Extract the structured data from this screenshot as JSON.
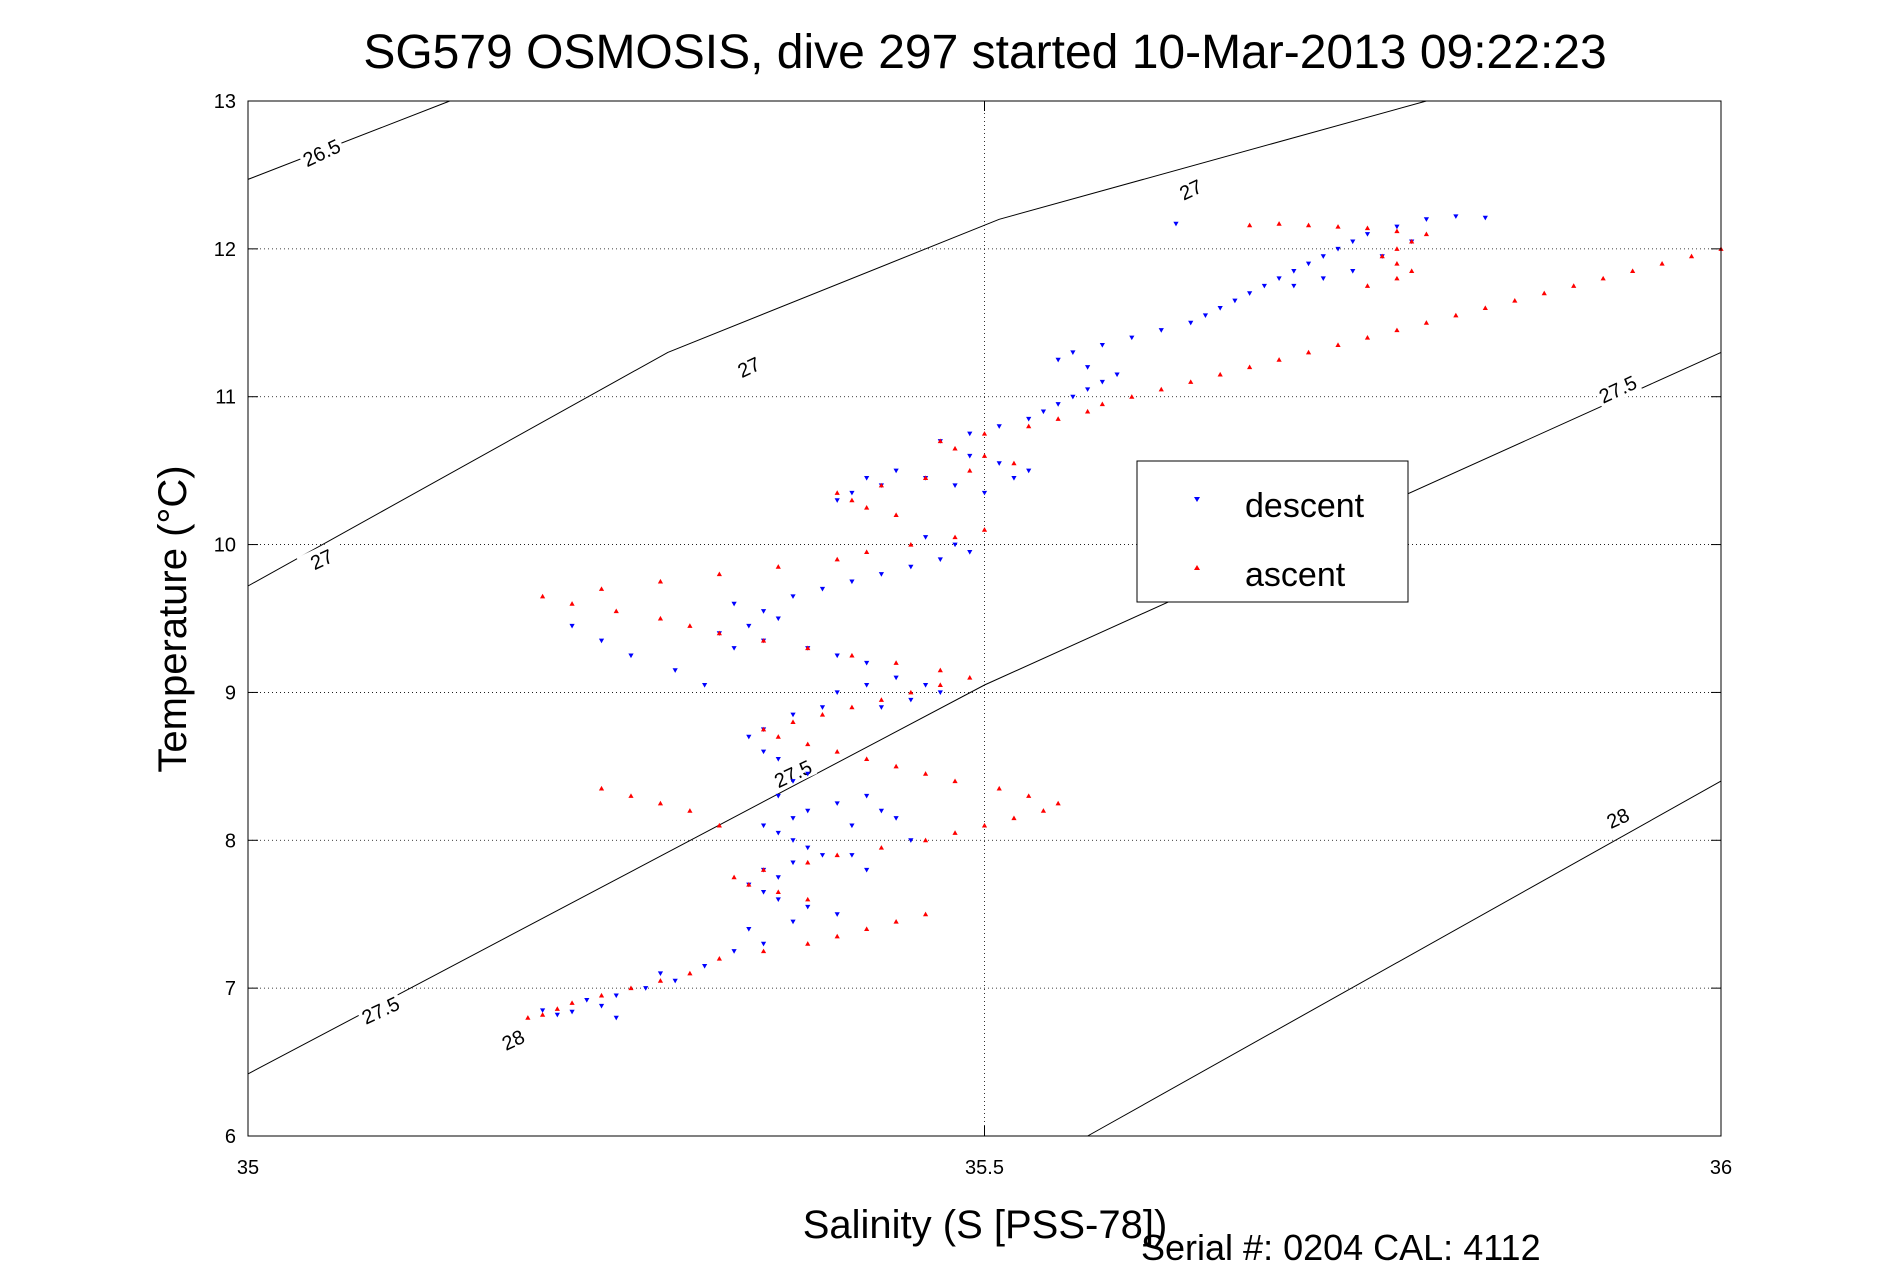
{
  "chart_data": {
    "type": "scatter",
    "title": "SG579 OSMOSIS, dive 297 started 10-Mar-2013 09:22:23",
    "xlabel": "Salinity (S [PSS-78])",
    "ylabel": "Temperature (°C)",
    "xlim": [
      35,
      36
    ],
    "ylim": [
      6,
      13
    ],
    "xticks": [
      35,
      35.5,
      36
    ],
    "yticks": [
      6,
      7,
      8,
      9,
      10,
      11,
      12,
      13
    ],
    "grid": true,
    "legend_placement": "right",
    "footer": "Serial #: 0204  CAL: 4112",
    "density_contours": [
      {
        "label": "26.5",
        "points": [
          [
            35,
            12.47
          ],
          [
            35.137,
            13
          ]
        ],
        "label_positions": [
          [
            35.05,
            12.65
          ]
        ]
      },
      {
        "label": "27",
        "points": [
          [
            35,
            9.72
          ],
          [
            35.285,
            11.3
          ],
          [
            35.51,
            12.2
          ],
          [
            35.8,
            13
          ]
        ],
        "label_positions": [
          [
            35.05,
            9.9
          ],
          [
            35.34,
            11.2
          ],
          [
            35.64,
            12.4
          ]
        ]
      },
      {
        "label": "27.5",
        "points": [
          [
            35,
            6.42
          ],
          [
            35.5,
            9.05
          ],
          [
            36,
            11.3
          ]
        ],
        "label_positions": [
          [
            35.09,
            6.85
          ],
          [
            35.37,
            8.45
          ],
          [
            35.93,
            11.05
          ]
        ]
      },
      {
        "label": "28",
        "points": [
          [
            35.57,
            6
          ],
          [
            36,
            8.4
          ]
        ],
        "label_positions": [
          [
            35.18,
            6.65
          ],
          [
            35.93,
            8.15
          ]
        ]
      }
    ],
    "series": [
      {
        "name": "descent",
        "color": "#0000ff",
        "marker": "triangle-down",
        "points": [
          [
            35.21,
            6.82
          ],
          [
            35.2,
            6.85
          ],
          [
            35.22,
            6.84
          ],
          [
            35.25,
            6.8
          ],
          [
            35.24,
            6.88
          ],
          [
            35.23,
            6.92
          ],
          [
            35.25,
            6.95
          ],
          [
            35.27,
            7.0
          ],
          [
            35.29,
            7.05
          ],
          [
            35.28,
            7.1
          ],
          [
            35.31,
            7.15
          ],
          [
            35.33,
            7.25
          ],
          [
            35.35,
            7.3
          ],
          [
            35.34,
            7.4
          ],
          [
            35.37,
            7.45
          ],
          [
            35.4,
            7.5
          ],
          [
            35.38,
            7.55
          ],
          [
            35.36,
            7.6
          ],
          [
            35.35,
            7.65
          ],
          [
            35.34,
            7.7
          ],
          [
            35.36,
            7.75
          ],
          [
            35.35,
            7.8
          ],
          [
            35.37,
            7.85
          ],
          [
            35.39,
            7.9
          ],
          [
            35.38,
            7.95
          ],
          [
            35.37,
            8.0
          ],
          [
            35.36,
            8.05
          ],
          [
            35.35,
            8.1
          ],
          [
            35.37,
            8.15
          ],
          [
            35.38,
            8.2
          ],
          [
            35.4,
            8.25
          ],
          [
            35.42,
            8.3
          ],
          [
            35.43,
            8.2
          ],
          [
            35.44,
            8.15
          ],
          [
            35.41,
            8.1
          ],
          [
            35.45,
            8.0
          ],
          [
            35.42,
            7.8
          ],
          [
            35.41,
            7.9
          ],
          [
            35.36,
            8.3
          ],
          [
            35.37,
            8.4
          ],
          [
            35.38,
            8.45
          ],
          [
            35.36,
            8.55
          ],
          [
            35.35,
            8.6
          ],
          [
            35.34,
            8.7
          ],
          [
            35.35,
            8.75
          ],
          [
            35.37,
            8.85
          ],
          [
            35.39,
            8.9
          ],
          [
            35.4,
            9.0
          ],
          [
            35.42,
            9.05
          ],
          [
            35.44,
            9.1
          ],
          [
            35.46,
            9.05
          ],
          [
            35.47,
            9.0
          ],
          [
            35.45,
            8.95
          ],
          [
            35.43,
            8.9
          ],
          [
            35.42,
            9.2
          ],
          [
            35.4,
            9.25
          ],
          [
            35.38,
            9.3
          ],
          [
            35.35,
            9.35
          ],
          [
            35.33,
            9.3
          ],
          [
            35.32,
            9.4
          ],
          [
            35.34,
            9.45
          ],
          [
            35.36,
            9.5
          ],
          [
            35.35,
            9.55
          ],
          [
            35.33,
            9.6
          ],
          [
            35.37,
            9.65
          ],
          [
            35.39,
            9.7
          ],
          [
            35.41,
            9.75
          ],
          [
            35.43,
            9.8
          ],
          [
            35.45,
            9.85
          ],
          [
            35.47,
            9.9
          ],
          [
            35.49,
            9.95
          ],
          [
            35.48,
            10.0
          ],
          [
            35.46,
            10.05
          ],
          [
            35.4,
            10.3
          ],
          [
            35.41,
            10.35
          ],
          [
            35.43,
            10.4
          ],
          [
            35.42,
            10.45
          ],
          [
            35.44,
            10.5
          ],
          [
            35.46,
            10.45
          ],
          [
            35.48,
            10.4
          ],
          [
            35.5,
            10.35
          ],
          [
            35.52,
            10.45
          ],
          [
            35.53,
            10.5
          ],
          [
            35.51,
            10.55
          ],
          [
            35.49,
            10.6
          ],
          [
            35.47,
            10.7
          ],
          [
            35.49,
            10.75
          ],
          [
            35.51,
            10.8
          ],
          [
            35.53,
            10.85
          ],
          [
            35.54,
            10.9
          ],
          [
            35.55,
            10.95
          ],
          [
            35.56,
            11.0
          ],
          [
            35.57,
            11.05
          ],
          [
            35.58,
            11.1
          ],
          [
            35.59,
            11.15
          ],
          [
            35.57,
            11.2
          ],
          [
            35.55,
            11.25
          ],
          [
            35.56,
            11.3
          ],
          [
            35.58,
            11.35
          ],
          [
            35.6,
            11.4
          ],
          [
            35.62,
            11.45
          ],
          [
            35.64,
            11.5
          ],
          [
            35.65,
            11.55
          ],
          [
            35.66,
            11.6
          ],
          [
            35.67,
            11.65
          ],
          [
            35.68,
            11.7
          ],
          [
            35.69,
            11.75
          ],
          [
            35.7,
            11.8
          ],
          [
            35.71,
            11.85
          ],
          [
            35.72,
            11.9
          ],
          [
            35.73,
            11.95
          ],
          [
            35.74,
            12.0
          ],
          [
            35.75,
            12.05
          ],
          [
            35.76,
            12.1
          ],
          [
            35.78,
            12.15
          ],
          [
            35.8,
            12.2
          ],
          [
            35.82,
            12.22
          ],
          [
            35.84,
            12.21
          ],
          [
            35.79,
            12.05
          ],
          [
            35.77,
            11.95
          ],
          [
            35.75,
            11.85
          ],
          [
            35.73,
            11.8
          ],
          [
            35.71,
            11.75
          ],
          [
            35.63,
            12.17
          ],
          [
            35.31,
            9.05
          ],
          [
            35.29,
            9.15
          ],
          [
            35.26,
            9.25
          ],
          [
            35.24,
            9.35
          ],
          [
            35.22,
            9.45
          ]
        ]
      },
      {
        "name": "ascent",
        "color": "#ff0000",
        "marker": "triangle-up",
        "points": [
          [
            35.19,
            6.8
          ],
          [
            35.2,
            6.82
          ],
          [
            35.21,
            6.86
          ],
          [
            35.22,
            6.9
          ],
          [
            35.24,
            6.95
          ],
          [
            35.26,
            7.0
          ],
          [
            35.28,
            7.05
          ],
          [
            35.3,
            7.1
          ],
          [
            35.32,
            7.2
          ],
          [
            35.35,
            7.25
          ],
          [
            35.38,
            7.3
          ],
          [
            35.4,
            7.35
          ],
          [
            35.42,
            7.4
          ],
          [
            35.44,
            7.45
          ],
          [
            35.46,
            7.5
          ],
          [
            35.38,
            7.6
          ],
          [
            35.36,
            7.65
          ],
          [
            35.34,
            7.7
          ],
          [
            35.33,
            7.75
          ],
          [
            35.35,
            7.8
          ],
          [
            35.38,
            7.85
          ],
          [
            35.4,
            7.9
          ],
          [
            35.43,
            7.95
          ],
          [
            35.46,
            8.0
          ],
          [
            35.48,
            8.05
          ],
          [
            35.5,
            8.1
          ],
          [
            35.52,
            8.15
          ],
          [
            35.54,
            8.2
          ],
          [
            35.55,
            8.25
          ],
          [
            35.53,
            8.3
          ],
          [
            35.51,
            8.35
          ],
          [
            35.48,
            8.4
          ],
          [
            35.46,
            8.45
          ],
          [
            35.44,
            8.5
          ],
          [
            35.42,
            8.55
          ],
          [
            35.4,
            8.6
          ],
          [
            35.38,
            8.65
          ],
          [
            35.36,
            8.7
          ],
          [
            35.35,
            8.75
          ],
          [
            35.37,
            8.8
          ],
          [
            35.39,
            8.85
          ],
          [
            35.41,
            8.9
          ],
          [
            35.43,
            8.95
          ],
          [
            35.45,
            9.0
          ],
          [
            35.47,
            9.05
          ],
          [
            35.49,
            9.1
          ],
          [
            35.47,
            9.15
          ],
          [
            35.44,
            9.2
          ],
          [
            35.41,
            9.25
          ],
          [
            35.38,
            9.3
          ],
          [
            35.35,
            9.35
          ],
          [
            35.32,
            9.4
          ],
          [
            35.3,
            9.45
          ],
          [
            35.28,
            9.5
          ],
          [
            35.25,
            9.55
          ],
          [
            35.22,
            9.6
          ],
          [
            35.2,
            9.65
          ],
          [
            35.24,
            9.7
          ],
          [
            35.28,
            9.75
          ],
          [
            35.32,
            9.8
          ],
          [
            35.36,
            9.85
          ],
          [
            35.4,
            9.9
          ],
          [
            35.42,
            9.95
          ],
          [
            35.45,
            10.0
          ],
          [
            35.48,
            10.05
          ],
          [
            35.5,
            10.1
          ],
          [
            35.44,
            10.2
          ],
          [
            35.42,
            10.25
          ],
          [
            35.41,
            10.3
          ],
          [
            35.4,
            10.35
          ],
          [
            35.43,
            10.4
          ],
          [
            35.46,
            10.45
          ],
          [
            35.49,
            10.5
          ],
          [
            35.52,
            10.55
          ],
          [
            35.5,
            10.6
          ],
          [
            35.48,
            10.65
          ],
          [
            35.47,
            10.7
          ],
          [
            35.5,
            10.75
          ],
          [
            35.53,
            10.8
          ],
          [
            35.55,
            10.85
          ],
          [
            35.57,
            10.9
          ],
          [
            35.58,
            10.95
          ],
          [
            35.6,
            11.0
          ],
          [
            35.62,
            11.05
          ],
          [
            35.64,
            11.1
          ],
          [
            35.66,
            11.15
          ],
          [
            35.68,
            11.2
          ],
          [
            35.7,
            11.25
          ],
          [
            35.72,
            11.3
          ],
          [
            35.74,
            11.35
          ],
          [
            35.76,
            11.4
          ],
          [
            35.78,
            11.45
          ],
          [
            35.8,
            11.5
          ],
          [
            35.82,
            11.55
          ],
          [
            35.84,
            11.6
          ],
          [
            35.86,
            11.65
          ],
          [
            35.88,
            11.7
          ],
          [
            35.9,
            11.75
          ],
          [
            35.92,
            11.8
          ],
          [
            35.94,
            11.85
          ],
          [
            35.96,
            11.9
          ],
          [
            35.98,
            11.95
          ],
          [
            36.0,
            12.0
          ],
          [
            35.79,
            11.85
          ],
          [
            35.78,
            11.9
          ],
          [
            35.77,
            11.95
          ],
          [
            35.78,
            12.0
          ],
          [
            35.79,
            12.05
          ],
          [
            35.8,
            12.1
          ],
          [
            35.78,
            12.12
          ],
          [
            35.76,
            12.14
          ],
          [
            35.74,
            12.15
          ],
          [
            35.72,
            12.16
          ],
          [
            35.7,
            12.17
          ],
          [
            35.68,
            12.16
          ],
          [
            35.78,
            11.8
          ],
          [
            35.76,
            11.75
          ],
          [
            35.32,
            8.1
          ],
          [
            35.3,
            8.2
          ],
          [
            35.28,
            8.25
          ],
          [
            35.26,
            8.3
          ],
          [
            35.24,
            8.35
          ]
        ]
      }
    ]
  }
}
